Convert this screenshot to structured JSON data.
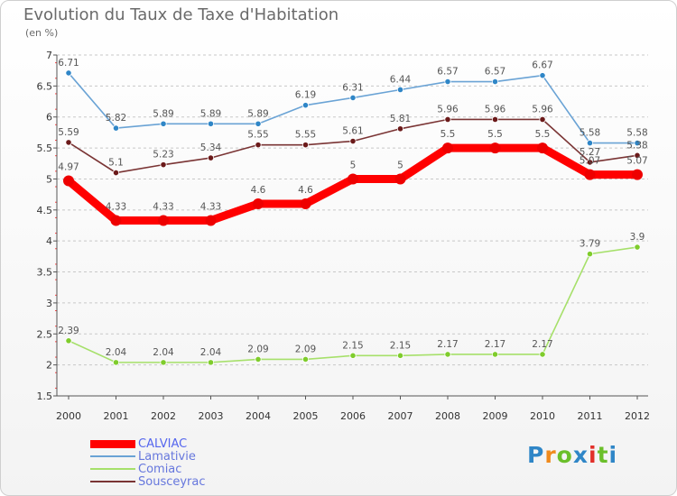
{
  "title": "Evolution du Taux de Taxe d'Habitation",
  "subtitle": "(en %)",
  "logo": {
    "text": "Proxiti",
    "colors": [
      "#2f86c7",
      "#f08a1c",
      "#6bbf2a",
      "#2f86c7",
      "#e2302a",
      "#6bbf2a",
      "#2f86c7"
    ]
  },
  "chart_data": {
    "type": "line",
    "title": "Evolution du Taux de Taxe d'Habitation",
    "ylabel": "(en %)",
    "xlabel": "",
    "x": [
      "2000",
      "2001",
      "2002",
      "2003",
      "2004",
      "2005",
      "2006",
      "2007",
      "2008",
      "2009",
      "2010",
      "2011",
      "2012"
    ],
    "ylim": [
      1.5,
      7
    ],
    "yticks": [
      "1.5",
      "2",
      "2.5",
      "3",
      "3.5",
      "4",
      "4.5",
      "5",
      "5.5",
      "6",
      "6.5",
      "7"
    ],
    "grid": "horizontal dashed",
    "legend_position": "bottom-left",
    "series": [
      {
        "name": "CALVIAC",
        "color": "#ff0000",
        "marker": "#ee0000",
        "bold": true,
        "values": [
          4.97,
          4.33,
          4.33,
          4.33,
          4.6,
          4.6,
          5,
          5,
          5.5,
          5.5,
          5.5,
          5.07,
          5.07
        ],
        "labels": [
          "4.97",
          "4.33",
          "4.33",
          "4.33",
          "4.6",
          "4.6",
          "5",
          "5",
          "5.5",
          "5.5",
          "5.5",
          "5.07",
          "5.07"
        ]
      },
      {
        "name": "Lamativie",
        "color": "#6aa3d5",
        "marker": "#2f86c7",
        "bold": false,
        "values": [
          6.71,
          5.82,
          5.89,
          5.89,
          5.89,
          6.19,
          6.31,
          6.44,
          6.57,
          6.57,
          6.67,
          5.58,
          5.58
        ],
        "labels": [
          "6.71",
          "5.82",
          "5.89",
          "5.89",
          "5.89",
          "6.19",
          "6.31",
          "6.44",
          "6.57",
          "6.57",
          "6.67",
          "5.58",
          "5.58"
        ]
      },
      {
        "name": "Comiac",
        "color": "#a6e06a",
        "marker": "#7fcc2c",
        "bold": false,
        "values": [
          2.39,
          2.04,
          2.04,
          2.04,
          2.09,
          2.09,
          2.15,
          2.15,
          2.17,
          2.17,
          2.17,
          3.79,
          3.9
        ],
        "labels": [
          "2.39",
          "2.04",
          "2.04",
          "2.04",
          "2.09",
          "2.09",
          "2.15",
          "2.15",
          "2.17",
          "2.17",
          "2.17",
          "3.79",
          "3.9"
        ]
      },
      {
        "name": "Sousceyrac",
        "color": "#7a3434",
        "marker": "#6b1a1a",
        "bold": false,
        "values": [
          5.59,
          5.1,
          5.23,
          5.34,
          5.55,
          5.55,
          5.61,
          5.81,
          5.96,
          5.96,
          5.96,
          5.27,
          5.38
        ],
        "labels": [
          "5.59",
          "5.1",
          "5.23",
          "5.34",
          "5.55",
          "5.55",
          "5.61",
          "5.81",
          "5.96",
          "5.96",
          "5.96",
          "5.27",
          "5.38"
        ]
      }
    ]
  }
}
